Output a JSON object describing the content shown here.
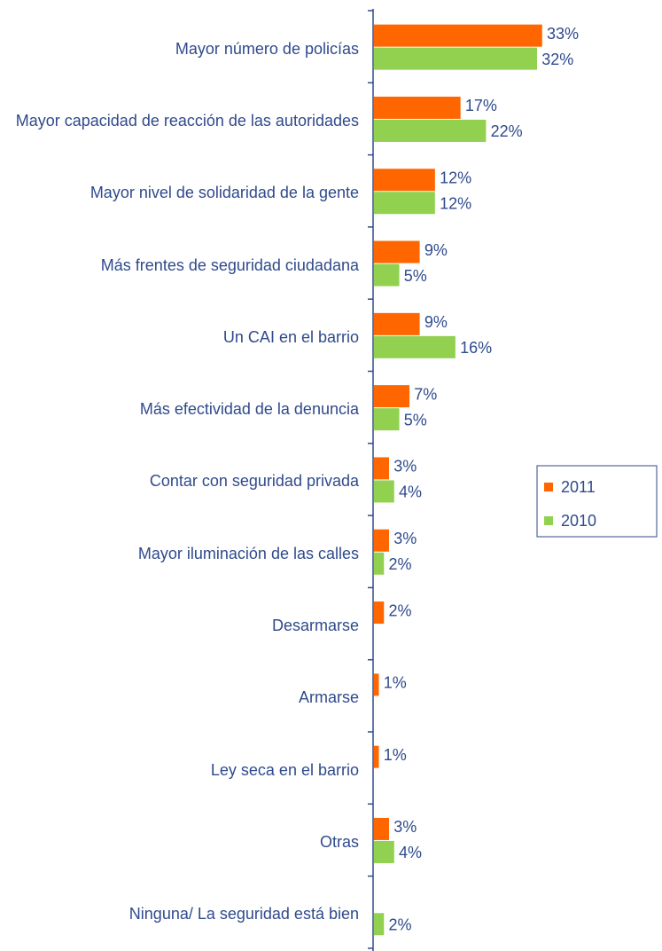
{
  "chart_data": {
    "type": "bar",
    "categories": [
      "Mayor número de policías",
      "Mayor capacidad de reacción de las autoridades",
      "Mayor nivel de solidaridad de la gente",
      "Más frentes de seguridad ciudadana",
      "Un CAI en el barrio",
      "Más efectividad de la denuncia",
      "Contar con seguridad privada",
      "Mayor iluminación de las calles",
      "Desarmarse",
      "Armarse",
      "Ley seca en el barrio",
      "Otras",
      "Ninguna/ La seguridad está bien"
    ],
    "series": [
      {
        "name": "2011",
        "color": "#ff6600",
        "values": [
          33,
          17,
          12,
          9,
          9,
          7,
          3,
          3,
          2,
          1,
          1,
          3,
          null
        ],
        "value_labels": [
          "33%",
          "17%",
          "12%",
          "9%",
          "9%",
          "7%",
          "3%",
          "3%",
          "2%",
          "1%",
          "1%",
          "3%",
          null
        ]
      },
      {
        "name": "2010",
        "color": "#92d050",
        "values": [
          32,
          22,
          12,
          5,
          16,
          5,
          4,
          2,
          null,
          null,
          null,
          4,
          2
        ],
        "value_labels": [
          "32%",
          "22%",
          "12%",
          "5%",
          "16%",
          "5%",
          "4%",
          "2%",
          null,
          null,
          null,
          "4%",
          "2%"
        ]
      }
    ],
    "legend": "right"
  }
}
